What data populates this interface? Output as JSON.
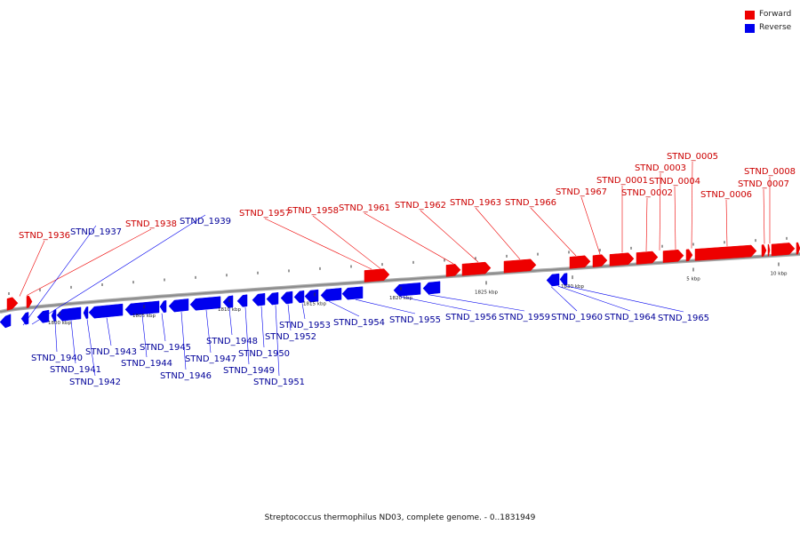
{
  "title": "Streptococcus thermophilus ND03, complete genome. - 0..1831949",
  "legend": [
    {
      "label": "Forward",
      "color": "#ee0000"
    },
    {
      "label": "Reverse",
      "color": "#0000ee"
    }
  ],
  "colors": {
    "forward": "#ee0000",
    "reverse": "#0000ee",
    "backbone": "#888888",
    "forward_label": "#cc0000",
    "reverse_label": "#000099"
  },
  "scale_labels": [
    "1800 kbp",
    "1805 kbp",
    "1810 kbp",
    "1815 kbp",
    "1820 kbp",
    "1825 kbp",
    "1830 kbp",
    "5 kbp",
    "10 kbp"
  ],
  "forward_genes": [
    "STND_1936",
    "STND_1938",
    "STND_1957",
    "STND_1958",
    "STND_1961",
    "STND_1962",
    "STND_1963",
    "STND_1966",
    "STND_1967",
    "STND_0001",
    "STND_0002",
    "STND_0003",
    "STND_0004",
    "STND_0005",
    "STND_0006",
    "STND_0007",
    "STND_0008"
  ],
  "reverse_genes": [
    "STND_1937",
    "STND_1939",
    "STND_1940",
    "STND_1941",
    "STND_1942",
    "STND_1943",
    "STND_1944",
    "STND_1945",
    "STND_1946",
    "STND_1947",
    "STND_1948",
    "STND_1949",
    "STND_1950",
    "STND_1951",
    "STND_1952",
    "STND_1953",
    "STND_1954",
    "STND_1955",
    "STND_1956",
    "STND_1959",
    "STND_1960",
    "STND_1964",
    "STND_1965"
  ]
}
